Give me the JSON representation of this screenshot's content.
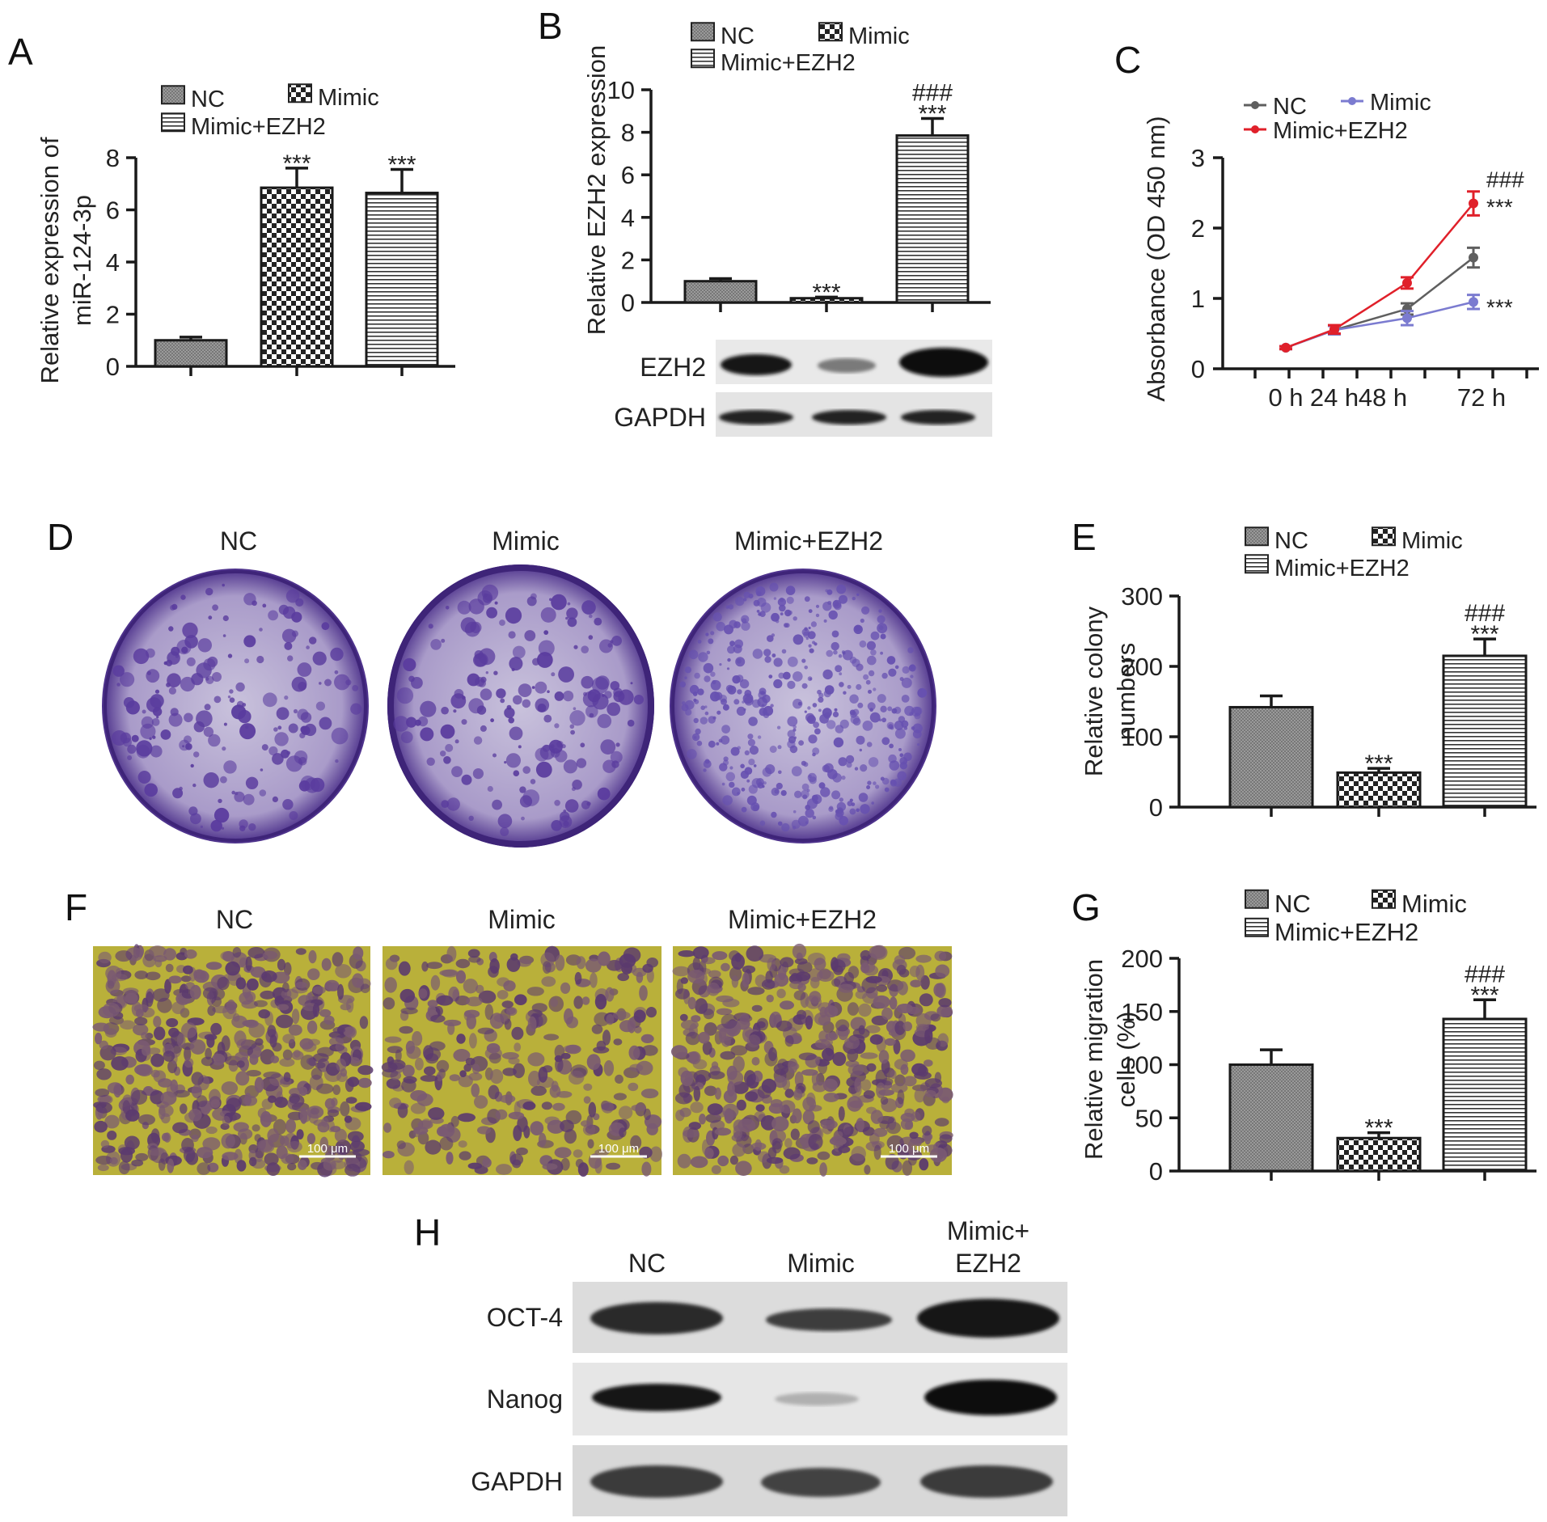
{
  "figure": {
    "panels": {
      "A": "A",
      "B": "B",
      "C": "C",
      "D": "D",
      "E": "E",
      "F": "F",
      "G": "G",
      "H": "H"
    },
    "groups": [
      "NC",
      "Mimic",
      "Mimic+EZH2"
    ],
    "colors": {
      "nc_line": "#5f5f5f",
      "mimic_line": "#7b7bd0",
      "ezh2_line": "#e0202a",
      "axis": "#1a1a1a",
      "crystal_violet": "#6a4fa8",
      "transwell_yellow": "#c9c33a"
    },
    "blots": {
      "B": {
        "rows": [
          "EZH2",
          "GAPDH"
        ]
      },
      "H": {
        "lanes": [
          "NC",
          "Mimic",
          "Mimic+\nEZH2"
        ],
        "lane_top": "Mimic+",
        "lane_bottom": "EZH2",
        "rows": [
          "OCT-4",
          "Nanog",
          "GAPDH"
        ]
      }
    },
    "images": {
      "D": {
        "labels": [
          "NC",
          "Mimic",
          "Mimic+EZH2"
        ]
      },
      "F": {
        "labels": [
          "NC",
          "Mimic",
          "Mimic+EZH2"
        ],
        "scale_bar": "100 μm"
      }
    }
  },
  "chart_data": [
    {
      "panel": "A",
      "type": "bar",
      "categories": [
        "NC",
        "Mimic",
        "Mimic+EZH2"
      ],
      "legend": [
        "NC",
        "Mimic",
        "Mimic+EZH2"
      ],
      "values": [
        1.0,
        6.85,
        6.65
      ],
      "errors": [
        0.12,
        0.75,
        0.9
      ],
      "annotations": [
        "",
        "***",
        "***"
      ],
      "ylabel": "Relative expression of\nmiR-124-3p",
      "ylabel_lines": [
        "Relative expression of",
        "miR-124-3p"
      ],
      "ylim": [
        0,
        8
      ],
      "yticks": [
        0,
        2,
        4,
        6,
        8
      ]
    },
    {
      "panel": "B",
      "type": "bar",
      "categories": [
        "NC",
        "Mimic",
        "Mimic+EZH2"
      ],
      "legend": [
        "NC",
        "Mimic",
        "Mimic+EZH2"
      ],
      "values": [
        1.0,
        0.2,
        7.85
      ],
      "errors": [
        0.12,
        0.05,
        0.8
      ],
      "annotations": [
        "",
        "***",
        "###\n***"
      ],
      "ylabel": "Relative EZH2 expression",
      "ylim": [
        0,
        10
      ],
      "yticks": [
        0,
        2,
        4,
        6,
        8,
        10
      ]
    },
    {
      "panel": "C",
      "type": "line",
      "x": [
        "0 h",
        "24 h",
        "48 h",
        "72 h"
      ],
      "legend": [
        "NC",
        "Mimic",
        "Mimic+EZH2"
      ],
      "series": [
        {
          "name": "NC",
          "values": [
            0.3,
            0.55,
            0.85,
            1.58
          ],
          "errors": [
            0.02,
            0.06,
            0.08,
            0.14
          ]
        },
        {
          "name": "Mimic",
          "values": [
            0.3,
            0.55,
            0.72,
            0.95
          ],
          "errors": [
            0.02,
            0.06,
            0.1,
            0.1
          ]
        },
        {
          "name": "Mimic+EZH2",
          "values": [
            0.3,
            0.56,
            1.22,
            2.35
          ],
          "errors": [
            0.02,
            0.06,
            0.08,
            0.17
          ]
        }
      ],
      "annotations": {
        "Mimic+EZH2": "###\n***",
        "Mimic": "***"
      },
      "ylabel": "Absorbance (OD 450 nm)",
      "ylim": [
        0,
        3
      ],
      "yticks": [
        0,
        1,
        2,
        3
      ]
    },
    {
      "panel": "E",
      "type": "bar",
      "categories": [
        "NC",
        "Mimic",
        "Mimic+EZH2"
      ],
      "legend": [
        "NC",
        "Mimic",
        "Mimic+EZH2"
      ],
      "values": [
        142,
        49,
        215
      ],
      "errors": [
        16,
        6,
        24
      ],
      "annotations": [
        "",
        "***",
        "###\n***"
      ],
      "ylabel": "Relative colony\nnumbers",
      "ylabel_lines": [
        "Relative colony",
        "numbers"
      ],
      "ylim": [
        0,
        300
      ],
      "yticks": [
        0,
        100,
        200,
        300
      ]
    },
    {
      "panel": "G",
      "type": "bar",
      "categories": [
        "NC",
        "Mimic",
        "Mimic+EZH2"
      ],
      "legend": [
        "NC",
        "Mimic",
        "Mimic+EZH2"
      ],
      "values": [
        100,
        31,
        143
      ],
      "errors": [
        14,
        5,
        18
      ],
      "annotations": [
        "",
        "***",
        "###\n***"
      ],
      "ylabel": "Relative migration\ncells (%)",
      "ylabel_lines": [
        "Relative migration",
        "cells (%)"
      ],
      "ylim": [
        0,
        200
      ],
      "yticks": [
        0,
        50,
        100,
        150,
        200
      ]
    }
  ]
}
